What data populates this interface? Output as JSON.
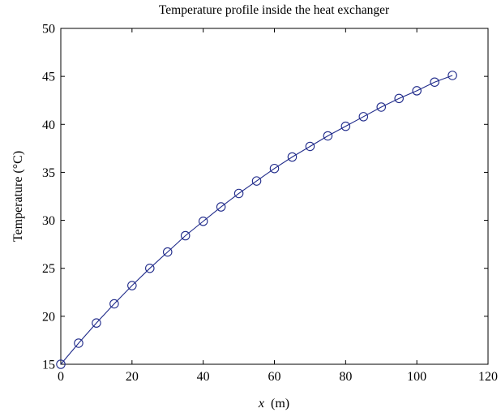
{
  "chart_data": {
    "type": "line",
    "title": "Temperature profile inside the heat exchanger",
    "xlabel_var": "x",
    "xlabel_unit": "(m)",
    "ylabel": "Temperature (°C)",
    "xlim": [
      0,
      120
    ],
    "ylim": [
      15,
      50
    ],
    "xticks": [
      0,
      20,
      40,
      60,
      80,
      100,
      120
    ],
    "yticks": [
      15,
      20,
      25,
      30,
      35,
      40,
      45,
      50
    ],
    "grid": false,
    "marker": "circle-open",
    "line_color": "#1f2a8a",
    "series": [
      {
        "x": [
          0,
          5,
          10,
          15,
          20,
          25,
          30,
          35,
          40,
          45,
          50,
          55,
          60,
          65,
          70,
          75,
          80,
          85,
          90,
          95,
          100,
          105,
          110
        ],
        "values": [
          15.0,
          17.2,
          19.3,
          21.3,
          23.2,
          25.0,
          26.7,
          28.4,
          29.9,
          31.4,
          32.8,
          34.1,
          35.4,
          36.6,
          37.7,
          38.8,
          39.8,
          40.8,
          41.8,
          42.7,
          43.5,
          44.4,
          45.1
        ]
      }
    ]
  }
}
